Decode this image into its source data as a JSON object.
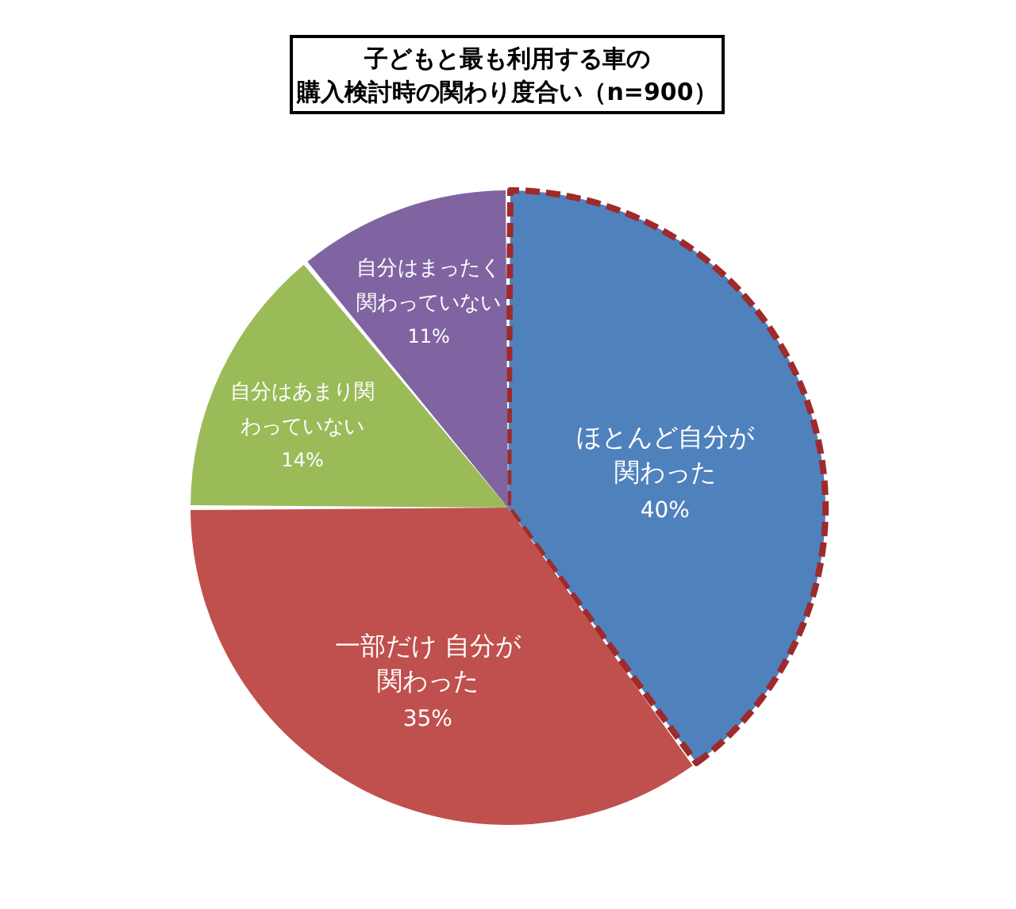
{
  "chart_data": {
    "type": "pie",
    "title": "子どもと最も利用する車の",
    "subtitle": "購入検討時の関わり度合い（n=900）",
    "categories": [
      "ほとんど自分が関わった",
      "一部だけ 自分が関わった",
      "自分はあまり関わっていない",
      "自分はまったく関わっていない"
    ],
    "values": [
      40,
      35,
      14,
      11
    ],
    "colors": [
      "#4f81bd",
      "#c0504d",
      "#9bbb59",
      "#8064a2"
    ],
    "value_labels": [
      "40%",
      "35%",
      "14%",
      "11%"
    ],
    "line_style": "dashed"
  }
}
